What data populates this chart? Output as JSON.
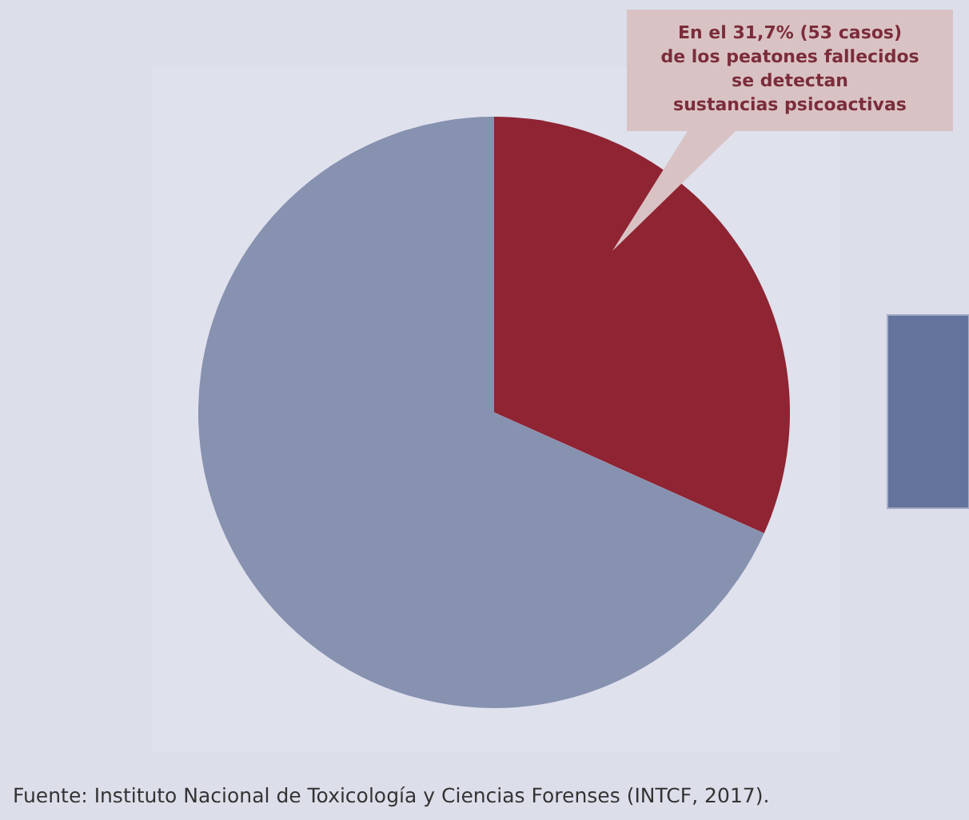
{
  "chart_data": {
    "type": "pie",
    "categories": [
      null,
      null
    ],
    "values": [
      31.7,
      68.3
    ],
    "colors": [
      "#8f2433",
      "#8791b0"
    ],
    "annotations": [
      "En el 31,7% (53 casos)\nde los peatones fallecidos\nse detectan\nsustancias psicoactivas",
      "Fuente: Instituto Nacional de Toxicología y Ciencias Forenses (INTCF, 2017)."
    ]
  }
}
